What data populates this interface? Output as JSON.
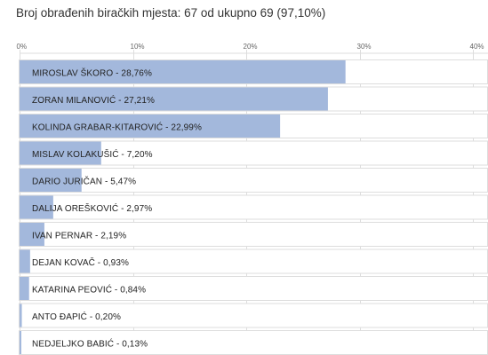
{
  "header": {
    "text": "Broj obrađenih biračkih mjesta: 67 od ukupno 69 (97,10%)"
  },
  "colors": {
    "bar": "#a3b8dc",
    "row_background": "#ffffff",
    "row_border": "#dddddd",
    "grid": "#dddddd",
    "label": "#222222"
  },
  "chart_data": {
    "type": "bar",
    "orientation": "horizontal",
    "title": "",
    "xlabel": "",
    "ylabel": "",
    "xlim": [
      0,
      40
    ],
    "ticks": [
      "0%",
      "10%",
      "20%",
      "30%",
      "40%"
    ],
    "tick_values": [
      0,
      10,
      20,
      30,
      40
    ],
    "grid": true,
    "categories": [
      "MIROSLAV ŠKORO",
      "ZORAN MILANOVIĆ",
      "KOLINDA GRABAR-KITAROVIĆ",
      "MISLAV KOLAKUŠIĆ",
      "DARIO JURIČAN",
      "DALIJA OREŠKOVIĆ",
      "IVAN PERNAR",
      "DEJAN KOVAČ",
      "KATARINA PEOVIĆ",
      "ANTO ĐAPIĆ",
      "NEDJELJKO BABIĆ"
    ],
    "values": [
      28.76,
      27.21,
      22.99,
      7.2,
      5.47,
      2.97,
      2.19,
      0.93,
      0.84,
      0.2,
      0.13
    ],
    "labels": [
      "MIROSLAV ŠKORO - 28,76%",
      "ZORAN MILANOVIĆ - 27,21%",
      "KOLINDA GRABAR-KITAROVIĆ - 22,99%",
      "MISLAV KOLAKUŠIĆ - 7,20%",
      "DARIO JURIČAN - 5,47%",
      "DALIJA OREŠKOVIĆ - 2,97%",
      "IVAN PERNAR - 2,19%",
      "DEJAN KOVAČ - 0,93%",
      "KATARINA PEOVIĆ - 0,84%",
      "ANTO ĐAPIĆ - 0,20%",
      "NEDJELJKO BABIĆ - 0,13%"
    ]
  }
}
